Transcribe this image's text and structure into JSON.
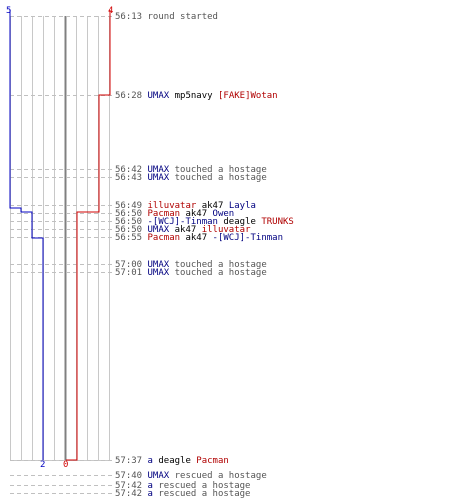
{
  "colors": {
    "blue": "#0000c0",
    "red": "#d00000",
    "grid": "#c8c8c8",
    "center": "#808080",
    "dash": "#c0c0c0"
  },
  "scores": {
    "blue_start": "5",
    "red_start": "4",
    "blue_end": "2",
    "red_end": "0"
  },
  "events": [
    {
      "time": "56:13",
      "parts": [
        {
          "text": "round started",
          "kind": "act"
        }
      ]
    },
    {
      "time": "56:28",
      "parts": [
        {
          "text": "UMAX",
          "kind": "blue"
        },
        {
          "text": " mp5navy ",
          "kind": "wpn"
        },
        {
          "text": "[FAKE]Wotan",
          "kind": "red"
        }
      ]
    },
    {
      "time": "56:42",
      "parts": [
        {
          "text": "UMAX",
          "kind": "blue"
        },
        {
          "text": " touched a hostage",
          "kind": "act"
        }
      ]
    },
    {
      "time": "56:43",
      "parts": [
        {
          "text": "UMAX",
          "kind": "blue"
        },
        {
          "text": " touched a hostage",
          "kind": "act"
        }
      ]
    },
    {
      "time": "56:49",
      "parts": [
        {
          "text": "illuvatar",
          "kind": "red"
        },
        {
          "text": " ak47 ",
          "kind": "wpn"
        },
        {
          "text": "Layla",
          "kind": "blue"
        }
      ]
    },
    {
      "time": "56:50",
      "parts": [
        {
          "text": "Pacman",
          "kind": "red"
        },
        {
          "text": " ak47 ",
          "kind": "wpn"
        },
        {
          "text": "Owen",
          "kind": "blue"
        }
      ]
    },
    {
      "time": "56:50",
      "parts": [
        {
          "text": "-[WCJ]-Tinman",
          "kind": "blue"
        },
        {
          "text": " deagle ",
          "kind": "wpn"
        },
        {
          "text": "TRUNKS",
          "kind": "red"
        }
      ]
    },
    {
      "time": "56:50",
      "parts": [
        {
          "text": "UMAX",
          "kind": "blue"
        },
        {
          "text": " ak47 ",
          "kind": "wpn"
        },
        {
          "text": "illuvatar",
          "kind": "red"
        }
      ]
    },
    {
      "time": "56:55",
      "parts": [
        {
          "text": "Pacman",
          "kind": "red"
        },
        {
          "text": " ak47 ",
          "kind": "wpn"
        },
        {
          "text": "-[WCJ]-Tinman",
          "kind": "blue"
        }
      ]
    },
    {
      "time": "57:00",
      "parts": [
        {
          "text": "UMAX",
          "kind": "blue"
        },
        {
          "text": " touched a hostage",
          "kind": "act"
        }
      ]
    },
    {
      "time": "57:01",
      "parts": [
        {
          "text": "UMAX",
          "kind": "blue"
        },
        {
          "text": " touched a hostage",
          "kind": "act"
        }
      ]
    },
    {
      "time": "57:37",
      "parts": [
        {
          "text": "a",
          "kind": "blue"
        },
        {
          "text": " deagle ",
          "kind": "wpn"
        },
        {
          "text": "Pacman",
          "kind": "red"
        }
      ]
    },
    {
      "time": "57:40",
      "parts": [
        {
          "text": "UMAX",
          "kind": "blue"
        },
        {
          "text": " rescued a hostage",
          "kind": "act"
        }
      ]
    },
    {
      "time": "57:42",
      "parts": [
        {
          "text": "a",
          "kind": "blue"
        },
        {
          "text": " rescued a hostage",
          "kind": "act"
        }
      ]
    },
    {
      "time": "57:42",
      "parts": [
        {
          "text": "a",
          "kind": "blue"
        },
        {
          "text": " rescued a hostage",
          "kind": "act"
        }
      ]
    }
  ]
}
